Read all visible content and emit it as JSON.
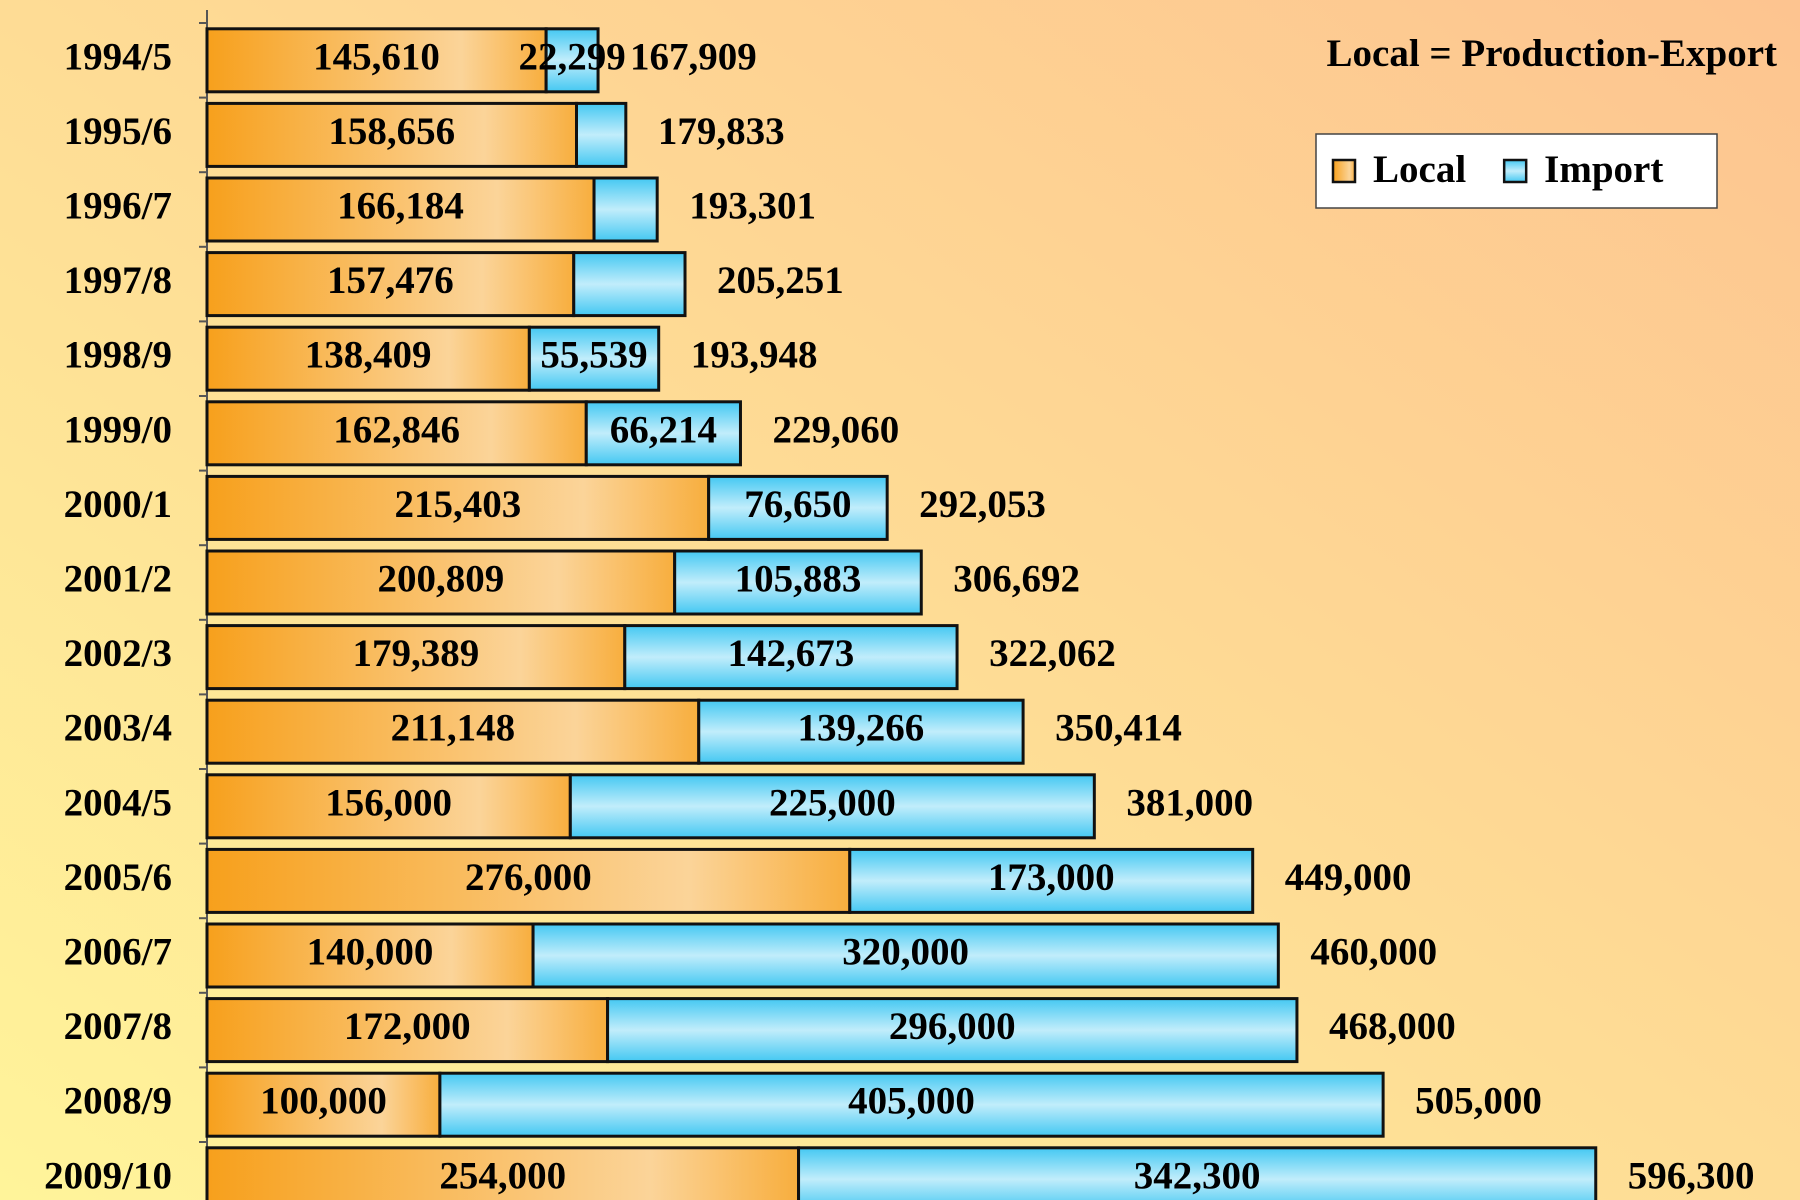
{
  "chart_data": {
    "type": "stacked-barh",
    "annotation": "Local = Production-Export",
    "categories": [
      "1994/5",
      "1995/6",
      "1996/7",
      "1997/8",
      "1998/9",
      "1999/0",
      "2000/1",
      "2001/2",
      "2002/3",
      "2003/4",
      "2004/5",
      "2005/6",
      "2006/7",
      "2007/8",
      "2008/9",
      "2009/10"
    ],
    "series": [
      {
        "name": "Local",
        "color": "#f7a01c",
        "values": [
          145610,
          158656,
          166184,
          157476,
          138409,
          162846,
          215403,
          200809,
          179389,
          211148,
          156000,
          276000,
          140000,
          172000,
          100000,
          254000
        ],
        "value_labels": [
          "145,610",
          "158,656",
          "166,184",
          "157,476",
          "138,409",
          "162,846",
          "215,403",
          "200,809",
          "179,389",
          "211,148",
          "156,000",
          "276,000",
          "140,000",
          "172,000",
          "100,000",
          "254,000"
        ]
      },
      {
        "name": "Import",
        "color": "#2fc2f0",
        "values": [
          22299,
          21177,
          27117,
          47775,
          55539,
          66214,
          76650,
          105883,
          142673,
          139266,
          225000,
          173000,
          320000,
          296000,
          405000,
          342300
        ],
        "value_labels": [
          "22,299",
          null,
          null,
          null,
          "55,539",
          "66,214",
          "76,650",
          "105,883",
          "142,673",
          "139,266",
          "225,000",
          "173,000",
          "320,000",
          "296,000",
          "405,000",
          "342,300"
        ]
      }
    ],
    "totals": {
      "values": [
        167909,
        179833,
        193301,
        205251,
        193948,
        229060,
        292053,
        306692,
        322062,
        350414,
        381000,
        449000,
        460000,
        468000,
        505000,
        596300
      ],
      "value_labels": [
        "167,909",
        "179,833",
        "193,301",
        "205,251",
        "193,948",
        "229,060",
        "292,053",
        "306,692",
        "322,062",
        "350,414",
        "381,000",
        "449,000",
        "460,000",
        "468,000",
        "505,000",
        "596,300"
      ]
    },
    "xlim": [
      0,
      684000
    ],
    "legend": "top-right"
  }
}
